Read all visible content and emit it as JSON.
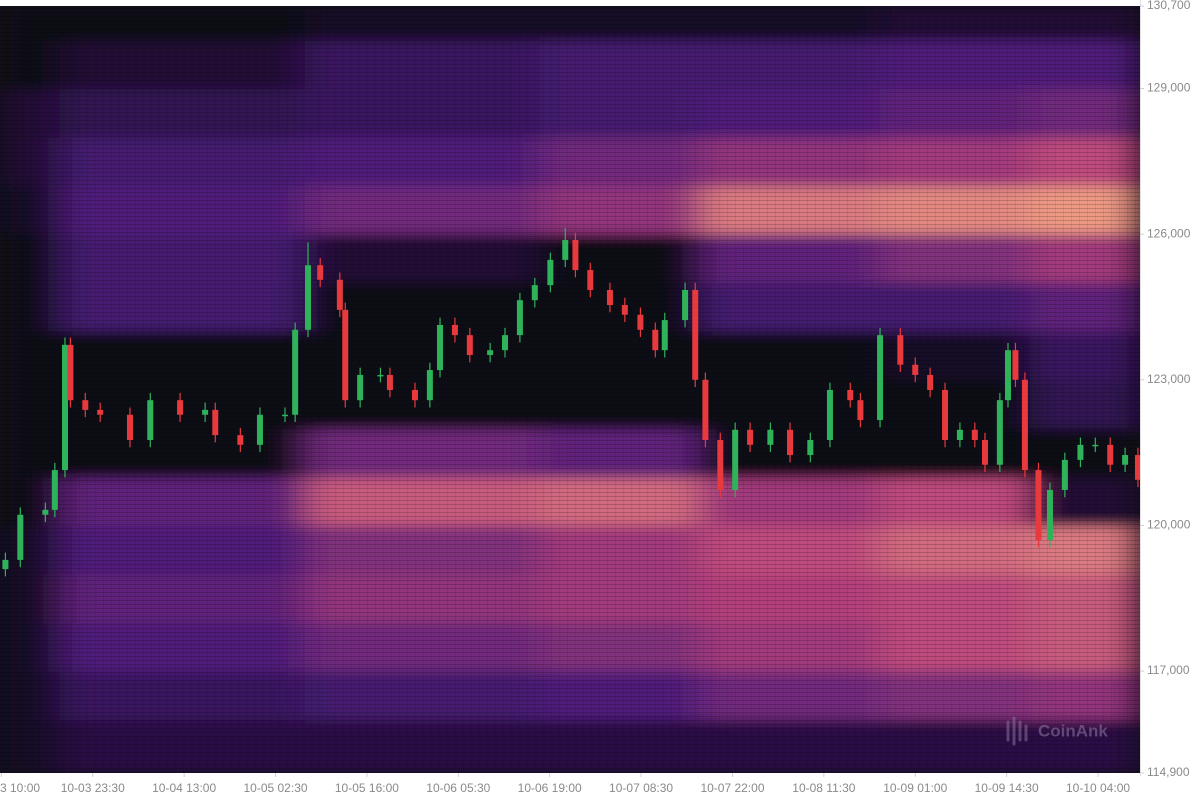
{
  "chart_data": {
    "type": "candlestick",
    "watermark": "CoinAnk",
    "xlim": [
      -0.2,
      168.2
    ],
    "xticks": [
      {
        "value": 0,
        "label": "3 10:00"
      },
      {
        "value": 13.5,
        "label": "10-03 23:30"
      },
      {
        "value": 27,
        "label": "10-04 13:00"
      },
      {
        "value": 40.5,
        "label": "10-05 02:30"
      },
      {
        "value": 54,
        "label": "10-05 16:00"
      },
      {
        "value": 67.5,
        "label": "10-06 05:30"
      },
      {
        "value": 81,
        "label": "10-06 19:00"
      },
      {
        "value": 94.5,
        "label": "10-07 08:30"
      },
      {
        "value": 108,
        "label": "10-07 22:00"
      },
      {
        "value": 121.5,
        "label": "10-08 11:30"
      },
      {
        "value": 135,
        "label": "10-09 01:00"
      },
      {
        "value": 148.5,
        "label": "10-09 14:30"
      },
      {
        "value": 162,
        "label": "10-10 04:00"
      }
    ],
    "ylim": [
      114900,
      130700
    ],
    "yticks": [
      {
        "value": 114900,
        "label": "114,900"
      },
      {
        "value": 117000,
        "label": "117,000"
      },
      {
        "value": 120000,
        "label": "120,000"
      },
      {
        "value": 123000,
        "label": "123,000"
      },
      {
        "value": 126000,
        "label": "126,000"
      },
      {
        "value": 129000,
        "label": "129,000"
      },
      {
        "value": 130700,
        "label": "130,700"
      }
    ],
    "up_color": "#2fb35a",
    "down_color": "#e8393d",
    "heatmap": {
      "colorscale": [
        "#0e0717",
        "#4a1d7a",
        "#b8427c",
        "#f6a885"
      ],
      "x_edges": [
        -0.2,
        8.7,
        44.9,
        79.6,
        103.2,
        129.8,
        152.0,
        168.2
      ],
      "y_edges": [
        114900,
        116000,
        117000,
        118000,
        119000,
        120000,
        121000,
        122000,
        123000,
        124000,
        125000,
        126000,
        127000,
        128000,
        129000,
        130000,
        130700
      ],
      "values": [
        [
          0.05,
          0.15,
          0.15,
          0.15,
          0.15,
          0.15,
          0.15
        ],
        [
          0.05,
          0.25,
          0.3,
          0.35,
          0.45,
          0.5,
          0.55
        ],
        [
          0.05,
          0.35,
          0.45,
          0.5,
          0.6,
          0.7,
          0.75
        ],
        [
          0.05,
          0.4,
          0.55,
          0.6,
          0.65,
          0.7,
          0.75
        ],
        [
          0.05,
          0.35,
          0.5,
          0.6,
          0.7,
          0.8,
          0.85
        ],
        [
          0.0,
          0.4,
          0.75,
          0.8,
          0.6,
          0.7,
          0.1
        ],
        [
          0.0,
          0.0,
          0.45,
          0.4,
          0.0,
          0.0,
          0.0
        ],
        [
          0.0,
          0.0,
          0.0,
          0.0,
          0.0,
          0.0,
          0.2
        ],
        [
          0.0,
          0.0,
          0.0,
          0.0,
          0.0,
          0.05,
          0.25
        ],
        [
          0.0,
          0.3,
          0.0,
          0.0,
          0.3,
          0.3,
          0.4
        ],
        [
          0.0,
          0.3,
          0.1,
          0.0,
          0.4,
          0.5,
          0.6
        ],
        [
          0.05,
          0.35,
          0.45,
          0.55,
          0.85,
          0.9,
          0.95
        ],
        [
          0.1,
          0.3,
          0.35,
          0.45,
          0.55,
          0.6,
          0.7
        ],
        [
          0.1,
          0.2,
          0.25,
          0.3,
          0.35,
          0.4,
          0.45
        ],
        [
          0.0,
          0.1,
          0.25,
          0.3,
          0.3,
          0.35,
          0.35
        ],
        [
          0.0,
          0.0,
          0.05,
          0.05,
          0.05,
          0.1,
          0.1
        ]
      ]
    },
    "x": [
      0.6,
      2.8,
      6.5,
      7.9,
      9.4,
      10.2,
      12.4,
      14.6,
      19.0,
      22.0,
      26.4,
      30.1,
      31.6,
      35.3,
      38.2,
      41.9,
      43.4,
      45.3,
      47.1,
      50.0,
      50.8,
      53.0,
      56.0,
      57.4,
      61.1,
      63.3,
      64.8,
      67.0,
      69.2,
      72.2,
      74.4,
      76.6,
      78.8,
      81.1,
      83.3,
      84.8,
      87.0,
      89.9,
      92.1,
      94.4,
      96.6,
      98.0,
      101.0,
      102.5,
      104.0,
      106.2,
      108.4,
      110.6,
      113.6,
      116.5,
      119.5,
      122.4,
      125.4,
      126.9,
      129.8,
      132.8,
      135.0,
      137.2,
      139.4,
      141.6,
      143.8,
      145.3,
      147.5,
      148.7,
      149.8,
      151.2,
      153.2,
      154.9,
      157.1,
      159.4,
      161.6,
      163.8,
      166.0,
      167.9
    ],
    "open": [
      119100,
      119290,
      120220,
      120320,
      121140,
      123720,
      122580,
      122380,
      122280,
      121760,
      122580,
      122280,
      122380,
      121860,
      121660,
      122280,
      122280,
      124030,
      125360,
      125060,
      124440,
      122580,
      123100,
      123100,
      122790,
      122580,
      123200,
      124130,
      123920,
      123510,
      123610,
      123920,
      124640,
      124950,
      125470,
      125880,
      125260,
      124850,
      124540,
      124340,
      124030,
      123610,
      124230,
      124850,
      123000,
      121760,
      120730,
      121970,
      121660,
      121970,
      121450,
      121760,
      122790,
      122580,
      122170,
      123920,
      123310,
      123100,
      122790,
      121760,
      121970,
      121760,
      121250,
      122580,
      123610,
      123000,
      121140,
      119700,
      120730,
      121350,
      121660,
      121660,
      121250,
      121450
    ],
    "high": [
      119440,
      120370,
      120470,
      121290,
      123870,
      123870,
      122730,
      122530,
      122430,
      122730,
      122730,
      122530,
      122530,
      122010,
      122430,
      122430,
      124180,
      125830,
      125510,
      125210,
      124590,
      123250,
      123250,
      123250,
      122940,
      123350,
      124280,
      124280,
      124070,
      123760,
      124070,
      124790,
      125100,
      125620,
      126130,
      126030,
      125410,
      125000,
      124690,
      124490,
      124180,
      124380,
      125000,
      125000,
      123150,
      121910,
      122120,
      122120,
      122120,
      122120,
      121910,
      122940,
      122940,
      122730,
      124070,
      124070,
      123460,
      123250,
      122940,
      122120,
      122120,
      121910,
      122730,
      123760,
      123760,
      123150,
      121290,
      120880,
      121500,
      121810,
      121810,
      121810,
      121600,
      121600
    ],
    "low": [
      118950,
      119140,
      120070,
      120170,
      120990,
      122430,
      122230,
      122130,
      121610,
      121610,
      122130,
      122130,
      121710,
      121510,
      121510,
      122130,
      122130,
      123880,
      124910,
      124290,
      122430,
      122430,
      122950,
      122640,
      122430,
      122430,
      123050,
      123770,
      123360,
      123360,
      123460,
      123770,
      124490,
      124800,
      125320,
      125110,
      124700,
      124390,
      124190,
      123880,
      123460,
      123460,
      124080,
      122850,
      121610,
      120580,
      120580,
      121510,
      121510,
      121300,
      121300,
      121610,
      122430,
      122020,
      122020,
      123160,
      122950,
      122640,
      121610,
      121610,
      121610,
      121100,
      121100,
      122430,
      122850,
      120990,
      119550,
      119550,
      120580,
      121200,
      121510,
      121100,
      121100,
      120790
    ],
    "close": [
      119290,
      120220,
      120320,
      121140,
      123720,
      122580,
      122380,
      122280,
      121760,
      122580,
      122280,
      122380,
      121860,
      121660,
      122280,
      122280,
      124030,
      125360,
      125060,
      124440,
      122580,
      123100,
      123100,
      122790,
      122580,
      123200,
      124130,
      123920,
      123510,
      123610,
      123920,
      124640,
      124950,
      125470,
      125880,
      125260,
      124850,
      124540,
      124340,
      124030,
      123610,
      124230,
      124850,
      123000,
      121760,
      120730,
      121970,
      121660,
      121970,
      121450,
      121760,
      122790,
      122580,
      122170,
      123920,
      123310,
      123100,
      122790,
      121760,
      121970,
      121760,
      121250,
      122580,
      123610,
      123000,
      121140,
      119700,
      120730,
      121350,
      121660,
      121660,
      121250,
      121450,
      120940
    ]
  }
}
